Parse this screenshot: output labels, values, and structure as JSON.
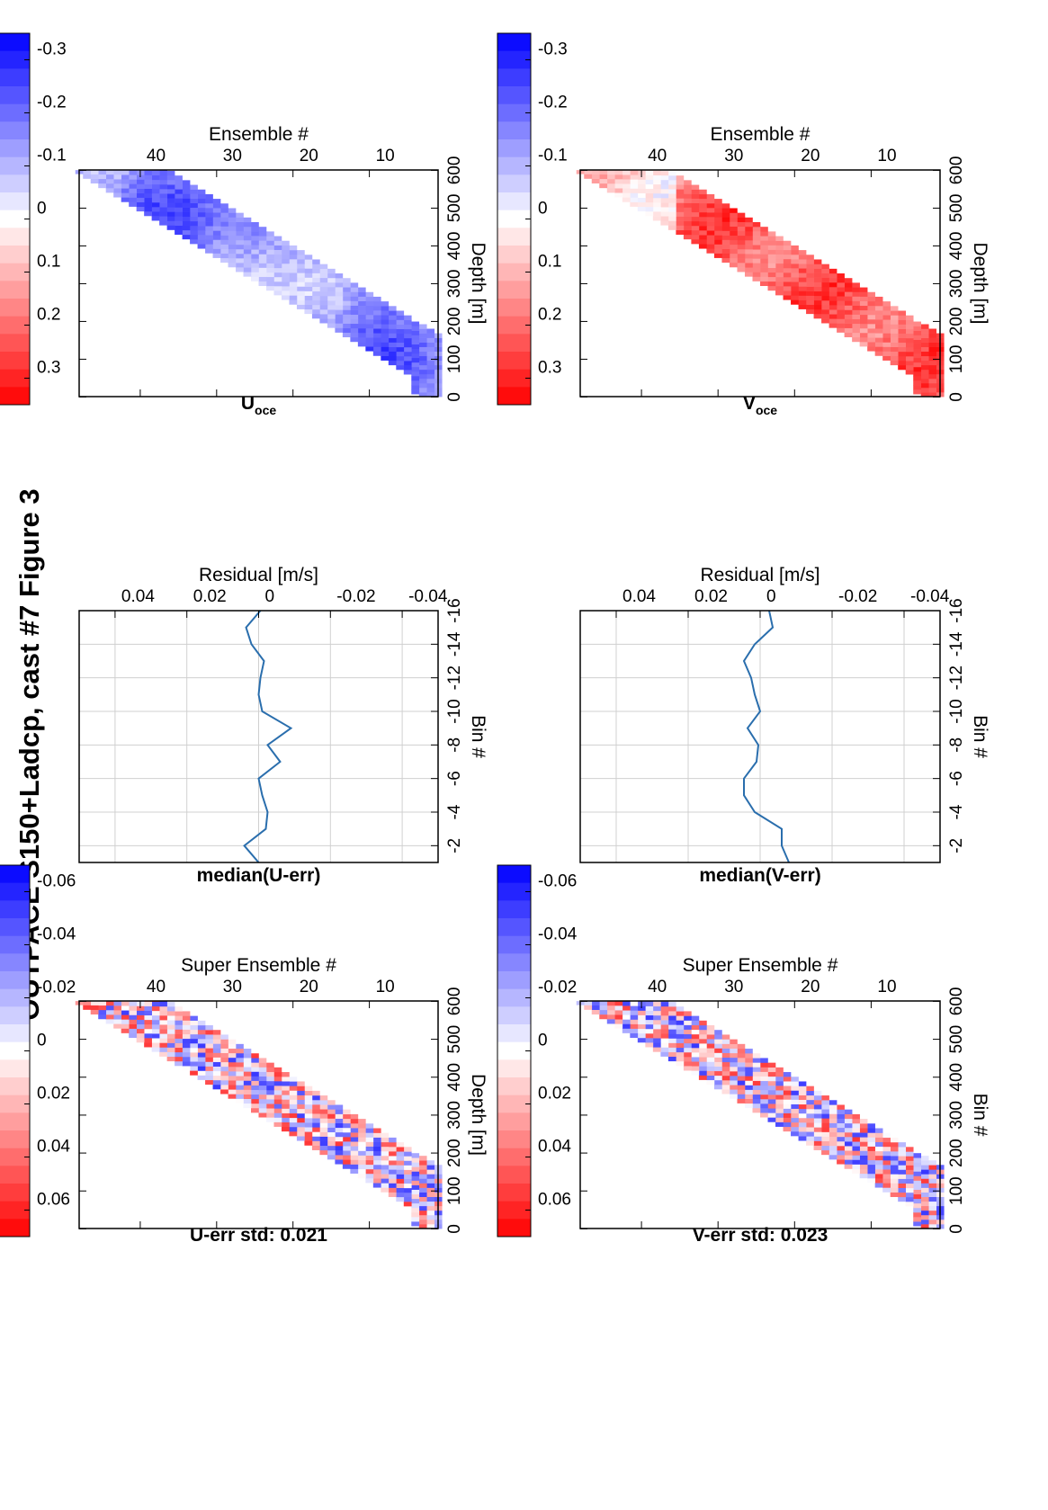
{
  "figure": {
    "title": "OUTPACE S150+Ladcp, cast #7  Figure 3"
  },
  "colors": {
    "line": "#2a6ead",
    "grid": "#d0d0d0",
    "cmap_low": "#0000ff",
    "cmap_mid": "#ffffff",
    "cmap_high": "#ff0000"
  },
  "chart_data": [
    {
      "id": "u_err",
      "type": "heatmap",
      "title": "U-err std: 0.021",
      "xlabel": "Super Ensemble #",
      "ylabel": "Depth [m]",
      "xlim": [
        1,
        48
      ],
      "ylim": [
        0,
        600
      ],
      "xticks": [
        "10",
        "20",
        "30",
        "40"
      ],
      "yticks": [
        "0",
        "100",
        "200",
        "300",
        "400",
        "500",
        "600"
      ],
      "band": {
        "x_start": 1,
        "x_end": 48,
        "top_start": 10,
        "top_end": 590,
        "width": 150
      },
      "value_range": [
        -0.07,
        0.07
      ],
      "colorbar_ticks": [
        "0.06",
        "0.04",
        "0.02",
        "0",
        "-0.02",
        "-0.04",
        "-0.06"
      ]
    },
    {
      "id": "u_median",
      "type": "line",
      "title": "median(U-err)",
      "xlabel": "Residual [m/s]",
      "ylabel": "Bin #",
      "xlim": [
        -0.05,
        0.05
      ],
      "ylim": [
        -1,
        -16
      ],
      "xticks": [
        "-0.04",
        "-0.02",
        "0",
        "0.02",
        "0.04"
      ],
      "yticks": [
        "-2",
        "-4",
        "-6",
        "-8",
        "-10",
        "-12",
        "-14",
        "-16"
      ],
      "bins": [
        -1,
        -2,
        -3,
        -4,
        -5,
        -6,
        -7,
        -8,
        -9,
        -10,
        -11,
        -12,
        -13,
        -14,
        -15,
        -16
      ],
      "values": [
        0.0,
        0.004,
        -0.002,
        -0.0025,
        -0.001,
        0.0,
        -0.006,
        -0.0025,
        -0.009,
        -0.001,
        0.0,
        -0.0005,
        -0.0015,
        0.002,
        0.0035,
        -0.0005
      ]
    },
    {
      "id": "u_oce",
      "type": "heatmap",
      "title": "U",
      "title_sub": "oce",
      "xlabel": "Ensemble #",
      "ylabel": "Depth [m]",
      "xlim": [
        1,
        48
      ],
      "ylim": [
        0,
        600
      ],
      "xticks": [
        "10",
        "20",
        "30",
        "40"
      ],
      "yticks": [
        "0",
        "100",
        "200",
        "300",
        "400",
        "500",
        "600"
      ],
      "band": {
        "x_start": 1,
        "x_end": 48,
        "top_start": 10,
        "top_end": 590,
        "width": 150
      },
      "value_range": [
        -0.35,
        0.35
      ],
      "colorbar_ticks": [
        "0.3",
        "0.2",
        "0.1",
        "0",
        "-0.1",
        "-0.2",
        "-0.3"
      ]
    },
    {
      "id": "v_err",
      "type": "heatmap",
      "title": "V-err std: 0.023",
      "xlabel": "Super Ensemble #",
      "ylabel": "Bin #",
      "xlim": [
        1,
        48
      ],
      "ylim": [
        0,
        600
      ],
      "xticks": [
        "10",
        "20",
        "30",
        "40"
      ],
      "yticks": [
        "0",
        "100",
        "200",
        "300",
        "400",
        "500",
        "600"
      ],
      "band": {
        "x_start": 1,
        "x_end": 48,
        "top_start": 10,
        "top_end": 590,
        "width": 150
      },
      "value_range": [
        -0.07,
        0.07
      ],
      "colorbar_ticks": [
        "0.06",
        "0.04",
        "0.02",
        "0",
        "-0.02",
        "-0.04",
        "-0.06"
      ]
    },
    {
      "id": "v_median",
      "type": "line",
      "title": "median(V-err)",
      "xlabel": "Residual [m/s]",
      "ylabel": "Bin #",
      "xlim": [
        -0.05,
        0.05
      ],
      "ylim": [
        -1,
        -16
      ],
      "xticks": [
        "-0.04",
        "-0.02",
        "0",
        "0.02",
        "0.04"
      ],
      "yticks": [
        "-2",
        "-4",
        "-6",
        "-8",
        "-10",
        "-12",
        "-14",
        "-16"
      ],
      "bins": [
        -1,
        -2,
        -3,
        -4,
        -5,
        -6,
        -7,
        -8,
        -9,
        -10,
        -11,
        -12,
        -13,
        -14,
        -15,
        -16
      ],
      "values": [
        -0.008,
        -0.006,
        -0.006,
        0.0015,
        0.0045,
        0.0045,
        0.001,
        0.0005,
        0.0035,
        0.0,
        0.0015,
        0.0025,
        0.0045,
        0.0015,
        -0.0035,
        -0.0025
      ]
    },
    {
      "id": "v_oce",
      "type": "heatmap",
      "title": "V",
      "title_sub": "oce",
      "xlabel": "Ensemble #",
      "ylabel": "Depth [m]",
      "xlim": [
        1,
        48
      ],
      "ylim": [
        0,
        600
      ],
      "xticks": [
        "10",
        "20",
        "30",
        "40"
      ],
      "yticks": [
        "0",
        "100",
        "200",
        "300",
        "400",
        "500",
        "600"
      ],
      "band": {
        "x_start": 1,
        "x_end": 48,
        "top_start": 10,
        "top_end": 590,
        "width": 150
      },
      "value_range": [
        -0.35,
        0.35
      ],
      "colorbar_ticks": [
        "0.3",
        "0.2",
        "0.1",
        "0",
        "-0.1",
        "-0.2",
        "-0.3"
      ]
    }
  ]
}
